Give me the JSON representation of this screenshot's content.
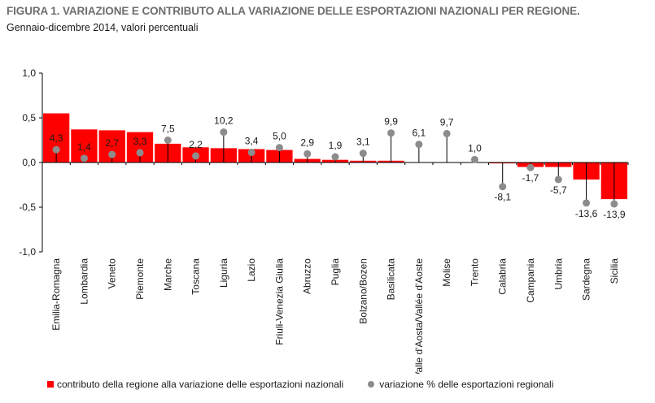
{
  "header": {
    "title": "FIGURA 1. VARIAZIONE E CONTRIBUTO ALLA VARIAZIONE DELLE ESPORTAZIONI NAZIONALI PER REGIONE.",
    "subtitle": "Gennaio-dicembre 2014, valori percentuali"
  },
  "legend": {
    "bars_label": "contributo della regione alla variazione delle esportazioni nazionali",
    "dots_label": "variazione % delle esportazioni regionali"
  },
  "colors": {
    "bar": "#ff0000",
    "dot": "#8c8c8c",
    "axis": "#000000"
  },
  "chart_data": {
    "type": "bar",
    "categories": [
      "Emilia-Romagna",
      "Lombardia",
      "Veneto",
      "Piemonte",
      "Marche",
      "Toscana",
      "Liguria",
      "Lazio",
      "Friuli-Venezia Giulia",
      "Abruzzo",
      "Puglia",
      "Bolzano/Bozen",
      "Basilicata",
      "Valle d'Aosta/Vallée d'Aoste",
      "Molise",
      "Trento",
      "Calabria",
      "Campania",
      "Umbria",
      "Sardegna",
      "Sicilia"
    ],
    "series": [
      {
        "name": "contributo della regione alla variazione delle esportazioni nazionali",
        "kind": "bar",
        "axis": "left",
        "values": [
          0.55,
          0.37,
          0.36,
          0.34,
          0.21,
          0.17,
          0.16,
          0.15,
          0.14,
          0.04,
          0.03,
          0.02,
          0.02,
          0.0,
          0.0,
          0.0,
          -0.01,
          -0.05,
          -0.05,
          -0.19,
          -0.41
        ]
      },
      {
        "name": "variazione % delle esportazioni regionali",
        "kind": "dot",
        "axis": "secondary",
        "values": [
          4.3,
          1.4,
          2.7,
          3.3,
          7.5,
          2.2,
          10.2,
          3.4,
          5.0,
          2.9,
          1.9,
          3.1,
          9.9,
          6.1,
          9.7,
          1.0,
          -8.1,
          -1.7,
          -5.7,
          -13.6,
          -13.9
        ],
        "labels": [
          "4,3",
          "1,4",
          "2,7",
          "3,3",
          "7,5",
          "2,2",
          "10,2",
          "3,4",
          "5,0",
          "2,9",
          "1,9",
          "3,1",
          "9,9",
          "6,1",
          "9,7",
          "1,0",
          "-8,1",
          "-1,7",
          "-5,7",
          "-13,6",
          "-13,9"
        ]
      }
    ],
    "y_ticks": [
      "1,0",
      "0,5",
      "0,0",
      "-0,5",
      "-1,0"
    ],
    "ylim": [
      -1.0,
      1.0
    ],
    "y2lim": [
      -30,
      30
    ],
    "grid": false,
    "legend_position": "bottom"
  }
}
